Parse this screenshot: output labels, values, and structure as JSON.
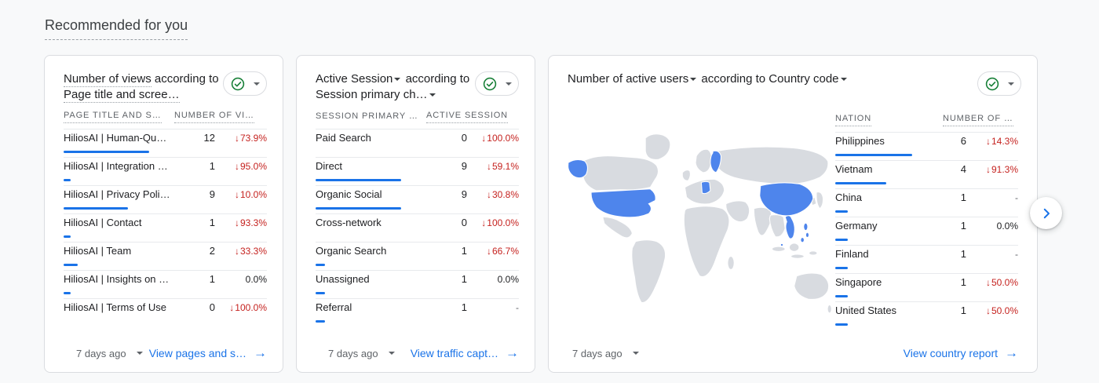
{
  "page": {
    "title": "Recommended for you"
  },
  "icons": {
    "trend_down": "↓",
    "link_arrow": "→"
  },
  "colors": {
    "accent_blue": "#1a73e8",
    "bar_blue": "#1a73e8",
    "negative_red": "#c5221f",
    "check_green": "#188038",
    "map_highlight": "#4e85ec",
    "map_base": "#d8dbe0"
  },
  "cards": [
    {
      "title": {
        "metric": "Number of views",
        "connector": "according to",
        "dimension": "Page title and scree…"
      },
      "columns": {
        "dimension": "PAGE TITLE AND S…",
        "metric": "NUMBER OF VI…"
      },
      "rows": [
        {
          "label": "HiliosAI | Human-Qu…",
          "value": "12",
          "change": "73.9%",
          "trend": "down",
          "bar_pct": 100
        },
        {
          "label": "HiliosAI | Integration …",
          "value": "1",
          "change": "95.0%",
          "trend": "down",
          "bar_pct": 8.3
        },
        {
          "label": "HiliosAI | Privacy Poli…",
          "value": "9",
          "change": "10.0%",
          "trend": "down",
          "bar_pct": 75
        },
        {
          "label": "HiliosAI | Contact",
          "value": "1",
          "change": "93.3%",
          "trend": "down",
          "bar_pct": 8.3
        },
        {
          "label": "HiliosAI | Team",
          "value": "2",
          "change": "33.3%",
          "trend": "down",
          "bar_pct": 16.7
        },
        {
          "label": "HiliosAI | Insights on …",
          "value": "1",
          "change": "0.0%",
          "trend": "flat",
          "bar_pct": 8.3
        },
        {
          "label": "HiliosAI | Terms of Use",
          "value": "0",
          "change": "100.0%",
          "trend": "down",
          "bar_pct": 0
        }
      ],
      "footer": {
        "time": "7 days ago",
        "link": "View pages and s…"
      }
    },
    {
      "title": {
        "metric": "Active Session",
        "connector": "according to",
        "dimension": "Session primary ch…"
      },
      "columns": {
        "dimension": "SESSION PRIMARY …",
        "metric": "ACTIVE SESSION"
      },
      "rows": [
        {
          "label": "Paid Search",
          "value": "0",
          "change": "100.0%",
          "trend": "down",
          "bar_pct": 0
        },
        {
          "label": "Direct",
          "value": "9",
          "change": "59.1%",
          "trend": "down",
          "bar_pct": 100
        },
        {
          "label": "Organic Social",
          "value": "9",
          "change": "30.8%",
          "trend": "down",
          "bar_pct": 100
        },
        {
          "label": "Cross-network",
          "value": "0",
          "change": "100.0%",
          "trend": "down",
          "bar_pct": 0
        },
        {
          "label": "Organic Search",
          "value": "1",
          "change": "66.7%",
          "trend": "down",
          "bar_pct": 11.1
        },
        {
          "label": "Unassigned",
          "value": "1",
          "change": "0.0%",
          "trend": "flat",
          "bar_pct": 11.1
        },
        {
          "label": "Referral",
          "value": "1",
          "change": "-",
          "trend": "none",
          "bar_pct": 11.1
        }
      ],
      "footer": {
        "time": "7 days ago",
        "link": "View traffic capt…"
      }
    },
    {
      "title": {
        "metric": "Number of active users",
        "connector": "according to",
        "dimension": "Country code"
      },
      "columns": {
        "dimension": "NATION",
        "metric": "NUMBER OF …"
      },
      "rows": [
        {
          "label": "Philippines",
          "value": "6",
          "change": "14.3%",
          "trend": "down",
          "bar_pct": 100
        },
        {
          "label": "Vietnam",
          "value": "4",
          "change": "91.3%",
          "trend": "down",
          "bar_pct": 66.7
        },
        {
          "label": "China",
          "value": "1",
          "change": "-",
          "trend": "none",
          "bar_pct": 16.7
        },
        {
          "label": "Germany",
          "value": "1",
          "change": "0.0%",
          "trend": "flat",
          "bar_pct": 16.7
        },
        {
          "label": "Finland",
          "value": "1",
          "change": "-",
          "trend": "none",
          "bar_pct": 16.7
        },
        {
          "label": "Singapore",
          "value": "1",
          "change": "50.0%",
          "trend": "down",
          "bar_pct": 16.7
        },
        {
          "label": "United States",
          "value": "1",
          "change": "50.0%",
          "trend": "down",
          "bar_pct": 16.7
        }
      ],
      "footer": {
        "time": "7 days ago",
        "link": "View country report"
      },
      "map": {
        "highlighted_countries": [
          "United States",
          "Finland",
          "Germany",
          "China",
          "Vietnam",
          "Philippines",
          "Singapore"
        ]
      }
    }
  ]
}
